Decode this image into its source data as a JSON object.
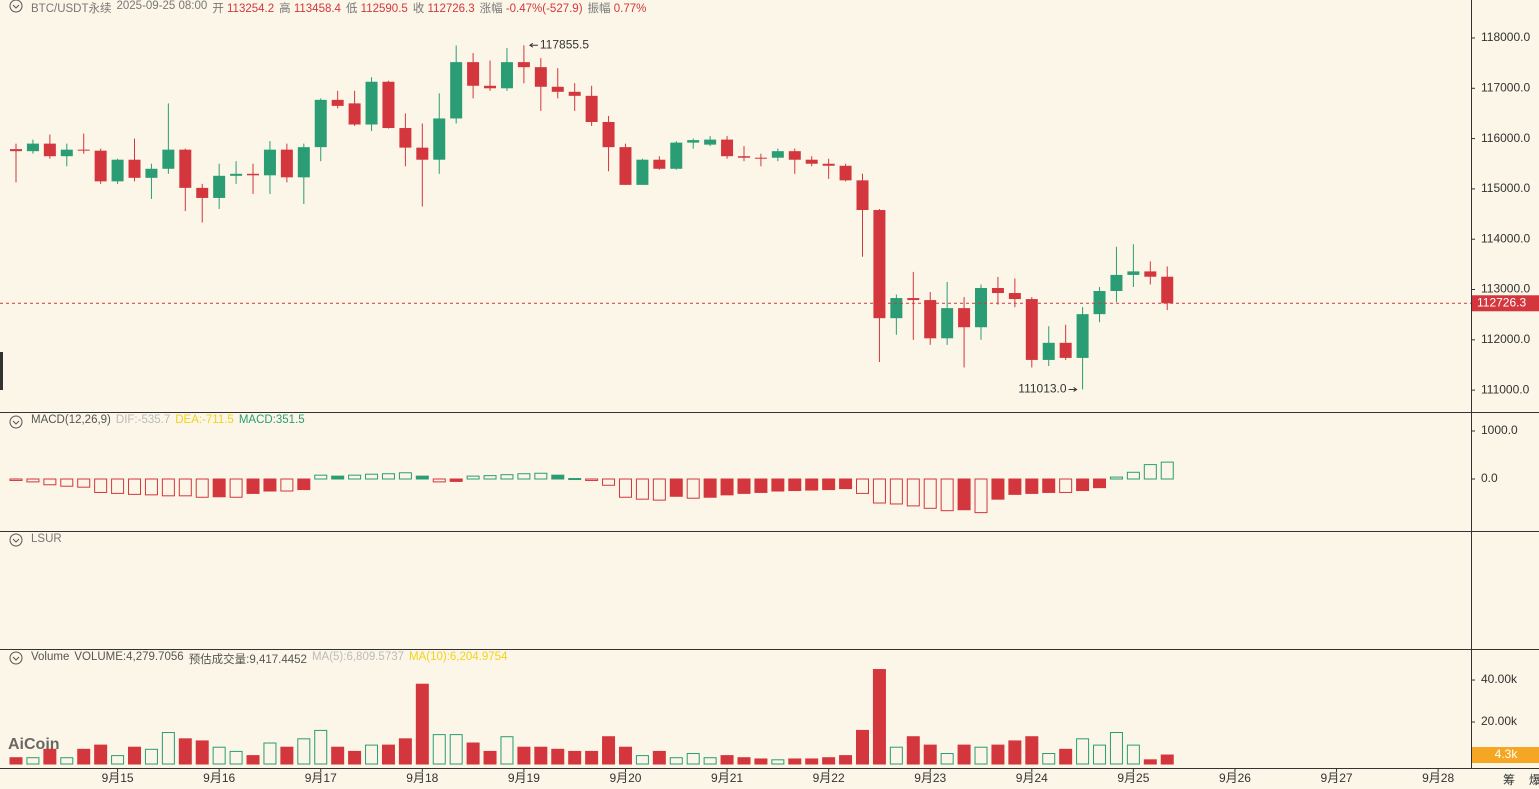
{
  "header": {
    "symbol": "BTC/USDT永续",
    "time": "2025-09-25 08:00",
    "open_label": "开",
    "open": "113254.2",
    "high_label": "高",
    "high": "113458.4",
    "low_label": "低",
    "low": "112590.5",
    "close_label": "收",
    "close": "112726.3",
    "change_label": "涨幅",
    "change": "-0.47%(-527.9)",
    "amplitude_label": "振幅",
    "amplitude": "0.77%"
  },
  "x_axis": {
    "ticks": [
      {
        "value": 6,
        "label": "9月15"
      },
      {
        "value": 12,
        "label": "9月16"
      },
      {
        "value": 18,
        "label": "9月17"
      },
      {
        "value": 24,
        "label": "9月18"
      },
      {
        "value": 30,
        "label": "9月19"
      },
      {
        "value": 36,
        "label": "9月20"
      },
      {
        "value": 42,
        "label": "9月21"
      },
      {
        "value": 48,
        "label": "9月22"
      },
      {
        "value": 54,
        "label": "9月23"
      },
      {
        "value": 60,
        "label": "9月24"
      },
      {
        "value": 66,
        "label": "9月25"
      },
      {
        "value": 72,
        "label": "9月26"
      },
      {
        "value": 78,
        "label": "9月27"
      },
      {
        "value": 84,
        "label": "9月28"
      }
    ]
  },
  "side_icons": [
    "筹",
    "爆"
  ],
  "watermark": "AiCoin",
  "chart_data": [
    {
      "type": "candlestick",
      "up_color": "#2a9d74",
      "down_color": "#d3373d",
      "open": [
        115790,
        115750,
        115900,
        115650,
        115780,
        115760,
        115150,
        115580,
        115220,
        115400,
        115780,
        115020,
        114820,
        115260,
        115300,
        115270,
        115780,
        115230,
        115830,
        116770,
        116700,
        116280,
        117130,
        116210,
        115820,
        115580,
        116400,
        117520,
        117050,
        117000,
        117520,
        117420,
        117030,
        116930,
        116850,
        116330,
        115830,
        115080,
        115580,
        115400,
        115920,
        115880,
        115980,
        115650,
        115620,
        115620,
        115750,
        115580,
        115500,
        115460,
        115170,
        114580,
        112430,
        112830,
        112790,
        112030,
        112630,
        112250,
        113030,
        112930,
        112810,
        111600,
        111940,
        111640,
        112510,
        112970,
        113290,
        113360,
        113254.2
      ],
      "high": [
        115900,
        115980,
        116080,
        115900,
        116100,
        115800,
        115600,
        116000,
        115500,
        116700,
        115800,
        115100,
        115500,
        115550,
        115500,
        115950,
        115900,
        115900,
        116800,
        116950,
        116950,
        117220,
        117150,
        116500,
        116300,
        116900,
        117850,
        117700,
        117550,
        117800,
        117855.5,
        117600,
        117400,
        117100,
        117050,
        116450,
        115900,
        115600,
        115650,
        115950,
        116000,
        116050,
        116050,
        115850,
        115700,
        115800,
        115800,
        115650,
        115600,
        115500,
        115300,
        114600,
        112900,
        113350,
        112950,
        113150,
        112850,
        113100,
        113250,
        113220,
        112850,
        112270,
        112300,
        112650,
        113050,
        113850,
        113900,
        113560,
        113458.4
      ],
      "low": [
        115130,
        115700,
        115600,
        115450,
        115700,
        115100,
        115100,
        115150,
        114800,
        115300,
        114560,
        114330,
        114600,
        115100,
        114900,
        114900,
        115130,
        114700,
        115550,
        116600,
        116250,
        116150,
        116200,
        115450,
        114650,
        115300,
        116300,
        116800,
        116950,
        116950,
        117100,
        116550,
        116800,
        116550,
        116250,
        115350,
        115080,
        115080,
        115380,
        115380,
        115800,
        115850,
        115600,
        115550,
        115450,
        115550,
        115300,
        115450,
        115200,
        115150,
        113650,
        111560,
        112100,
        112000,
        111900,
        111900,
        111450,
        112000,
        112700,
        112650,
        111450,
        111480,
        111600,
        111013,
        112350,
        112750,
        113050,
        113100,
        112590.5
      ],
      "close": [
        115750,
        115900,
        115650,
        115780,
        115760,
        115150,
        115580,
        115220,
        115400,
        115780,
        115020,
        114820,
        115260,
        115300,
        115270,
        115780,
        115230,
        115830,
        116770,
        116650,
        116280,
        117130,
        116210,
        115820,
        115580,
        116400,
        117520,
        117050,
        117000,
        117520,
        117420,
        117030,
        116930,
        116850,
        116330,
        115830,
        115080,
        115580,
        115400,
        115920,
        115970,
        115980,
        115650,
        115620,
        115600,
        115750,
        115580,
        115500,
        115460,
        115170,
        114580,
        112430,
        112830,
        112790,
        112030,
        112630,
        112250,
        113030,
        112930,
        112810,
        111600,
        111940,
        111640,
        112510,
        112970,
        113290,
        113360,
        113254.2,
        112726.3
      ],
      "ylim": [
        110565,
        118755
      ],
      "yticks": [
        {
          "value": 111000,
          "label": "111000.0"
        },
        {
          "value": 112000,
          "label": "112000.0"
        },
        {
          "value": 113000,
          "label": "113000.0"
        },
        {
          "value": 114000,
          "label": "114000.0"
        },
        {
          "value": 115000,
          "label": "115000.0"
        },
        {
          "value": 116000,
          "label": "116000.0"
        },
        {
          "value": 117000,
          "label": "117000.0"
        },
        {
          "value": 118000,
          "label": "118000.0"
        }
      ],
      "annotations": [
        {
          "text": "117855.5"
        },
        {
          "text": "111013.0"
        }
      ]
    },
    {
      "type": "macd",
      "legend": [
        "MACD(12,26,9)",
        "DIF:-535.7",
        "DEA:-711.5",
        "MACD:351.5"
      ],
      "legend_colors": [
        "#555",
        "#bbbbbb",
        "#f2d21b",
        "#2a9d74"
      ],
      "values": [
        -30,
        -60,
        -120,
        -150,
        -170,
        -280,
        -300,
        -320,
        -330,
        -350,
        -350,
        -380,
        -370,
        -380,
        -300,
        -250,
        -250,
        -220,
        80,
        60,
        80,
        100,
        110,
        130,
        60,
        -60,
        -50,
        60,
        70,
        90,
        110,
        120,
        80,
        10,
        -30,
        -130,
        -380,
        -420,
        -440,
        -360,
        -400,
        -380,
        -330,
        -300,
        -280,
        -250,
        -240,
        -230,
        -220,
        -200,
        -300,
        -500,
        -520,
        -560,
        -610,
        -660,
        -640,
        -700,
        -420,
        -320,
        -300,
        -280,
        -280,
        -240,
        -180,
        40,
        140,
        300,
        351.5
      ],
      "ylim": [
        -1083,
        1375
      ],
      "yticks": [
        {
          "value": 1000,
          "label": "1000.0"
        },
        {
          "value": 0,
          "label": "0.0"
        }
      ]
    },
    {
      "type": "empty",
      "title": "LSUR"
    },
    {
      "type": "volume",
      "legend": [
        "Volume",
        "VOLUME:4,279.7056",
        "预估成交量:9,417.4452",
        "MA(5):6,809.5737",
        "MA(10):6,204.9754"
      ],
      "legend_colors": [
        "#555",
        "#555",
        "#555",
        "#bbbbbb",
        "#f2d21b"
      ],
      "values": [
        3,
        3,
        7,
        3,
        7,
        9,
        4,
        8,
        7,
        15,
        12,
        11,
        8,
        6,
        4,
        10,
        8,
        12,
        16,
        8,
        6,
        9,
        9,
        12,
        38,
        14,
        14,
        10,
        6,
        13,
        8,
        8,
        7,
        6,
        6,
        13,
        8,
        4,
        6,
        3,
        5,
        3,
        4,
        3,
        2.4,
        2,
        2.4,
        2.4,
        3,
        4,
        16,
        45,
        8,
        13,
        9,
        5,
        9,
        8,
        9,
        11,
        13,
        5,
        7,
        12,
        9,
        15,
        9,
        2,
        4.2797056
      ],
      "current_label": "4.3k",
      "ylim": [
        -1.9,
        54.3
      ],
      "yticks": [
        {
          "value": 40,
          "label": "40.00k"
        },
        {
          "value": 20,
          "label": "20.00k"
        }
      ]
    }
  ]
}
